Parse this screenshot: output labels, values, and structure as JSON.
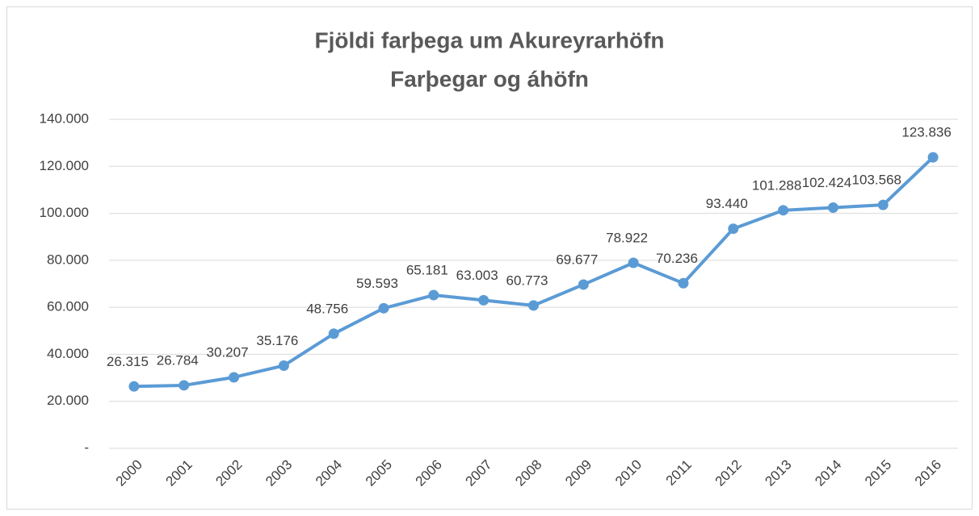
{
  "chart_data": {
    "type": "line",
    "title": "Fjöldi farþega um Akureyrarhöfn",
    "subtitle": "Farþegar og áhöfn",
    "categories": [
      "2000",
      "2001",
      "2002",
      "2003",
      "2004",
      "2005",
      "2006",
      "2007",
      "2008",
      "2009",
      "2010",
      "2011",
      "2012",
      "2013",
      "2014",
      "2015",
      "2016"
    ],
    "series": [
      {
        "name": "Farþegar og áhöfn",
        "color": "#5b9bd5",
        "values": [
          26315,
          26784,
          30207,
          35176,
          48756,
          59593,
          65181,
          63003,
          60773,
          69677,
          78922,
          70236,
          93440,
          101288,
          102424,
          103568,
          123836
        ],
        "value_labels": [
          "26.315",
          "26.784",
          "30.207",
          "35.176",
          "48.756",
          "59.593",
          "65.181",
          "63.003",
          "60.773",
          "69.677",
          "78.922",
          "70.236",
          "93.440",
          "101.288",
          "102.424",
          "103.568",
          "123.836"
        ]
      }
    ],
    "ylim": [
      0,
      140000
    ],
    "yticks": [
      {
        "value": 0,
        "label": "-"
      },
      {
        "value": 20000,
        "label": "20.000"
      },
      {
        "value": 40000,
        "label": "40.000"
      },
      {
        "value": 60000,
        "label": "60.000"
      },
      {
        "value": 80000,
        "label": "80.000"
      },
      {
        "value": 100000,
        "label": "100.000"
      },
      {
        "value": 120000,
        "label": "120.000"
      },
      {
        "value": 140000,
        "label": "140.000"
      }
    ],
    "grid": true
  }
}
